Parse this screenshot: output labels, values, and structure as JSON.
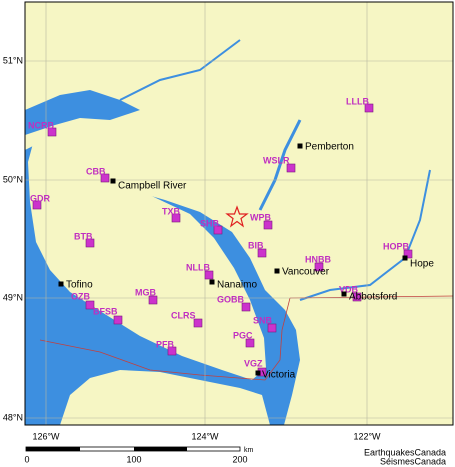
{
  "map": {
    "lat_labels": [
      "51°N",
      "50°N",
      "49°N",
      "48°N"
    ],
    "lon_labels": [
      "126°W",
      "124°W",
      "122°W"
    ],
    "stations": [
      "NCRB",
      "CBB",
      "GDR",
      "TXB",
      "SHB",
      "WPB",
      "BIB",
      "BTB",
      "HNBB",
      "WSLR",
      "LLLB",
      "HOPB",
      "VDB",
      "NLLB",
      "MGB",
      "OZB",
      "BFSB",
      "CLRS",
      "GOBB",
      "SNB",
      "PGC",
      "PFB",
      "VGZ"
    ],
    "cities": [
      "Pemberton",
      "Campbell River",
      "Vancouver",
      "Nanaimo",
      "Tofino",
      "Hope",
      "Abbotsford",
      "Victoria"
    ],
    "scale": {
      "labels": [
        0,
        100,
        200
      ],
      "unit": "km"
    },
    "credits": [
      "EarthquakesCanada",
      "SéismesCanada"
    ]
  }
}
